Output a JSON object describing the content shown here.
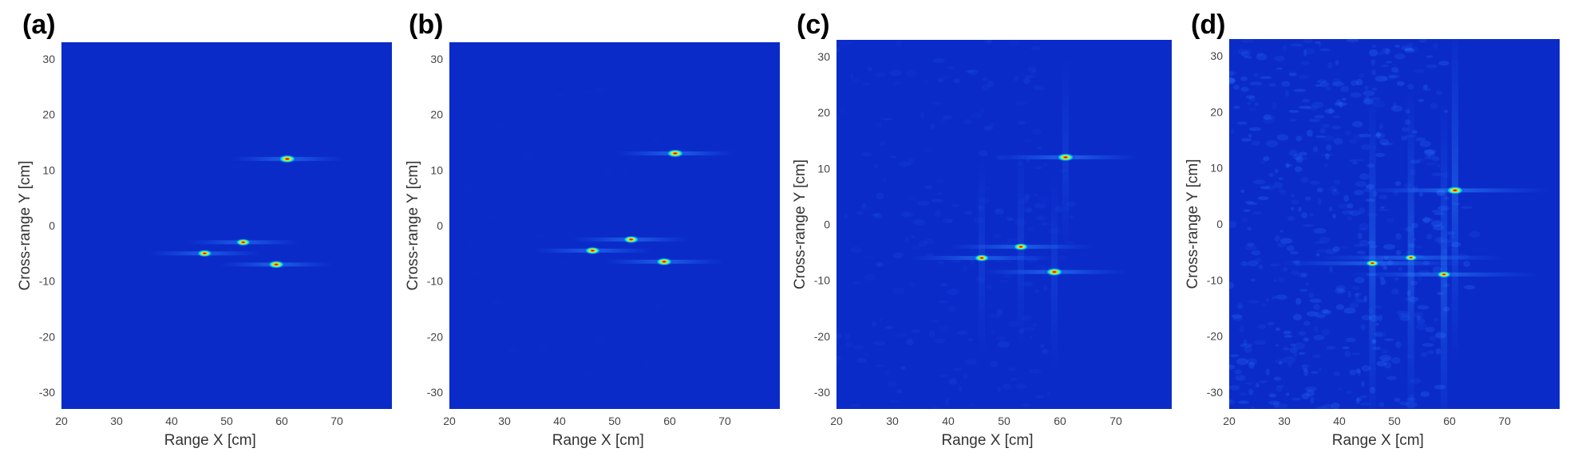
{
  "figure": {
    "colors": {
      "background": "#0a1fa8",
      "low": "#0b2bc9",
      "mid": "#00b7ff",
      "high": "#ffe600",
      "peak": "#ff3b00"
    },
    "panels": [
      {
        "label": "(a)",
        "chart_data": {
          "type": "heatmap",
          "xlabel": "Range X [cm]",
          "ylabel": "Cross-range Y [cm]",
          "xlim": [
            20,
            80
          ],
          "ylim": [
            -33,
            33
          ],
          "xticks": [
            20,
            30,
            40,
            50,
            60,
            70
          ],
          "yticks": [
            30,
            20,
            10,
            0,
            -10,
            -20,
            -30
          ],
          "targets": [
            {
              "x": 61,
              "y": 12,
              "intensity": 1.0
            },
            {
              "x": 53,
              "y": -3,
              "intensity": 0.85
            },
            {
              "x": 46,
              "y": -5,
              "intensity": 0.85
            },
            {
              "x": 59,
              "y": -7,
              "intensity": 0.95
            }
          ],
          "clutter": 0.0
        }
      },
      {
        "label": "(b)",
        "chart_data": {
          "type": "heatmap",
          "xlabel": "Range X [cm]",
          "ylabel": "Cross-range Y [cm]",
          "xlim": [
            20,
            80
          ],
          "ylim": [
            -33,
            33
          ],
          "xticks": [
            20,
            30,
            40,
            50,
            60,
            70
          ],
          "yticks": [
            30,
            20,
            10,
            0,
            -10,
            -20,
            -30
          ],
          "targets": [
            {
              "x": 61,
              "y": 13,
              "intensity": 1.0
            },
            {
              "x": 53,
              "y": -2.5,
              "intensity": 0.9
            },
            {
              "x": 46,
              "y": -4.5,
              "intensity": 0.9
            },
            {
              "x": 59,
              "y": -6.5,
              "intensity": 0.95
            }
          ],
          "clutter": 0.05
        }
      },
      {
        "label": "(c)",
        "chart_data": {
          "type": "heatmap",
          "xlabel": "Range X [cm]",
          "ylabel": "Cross-range Y [cm]",
          "xlim": [
            20,
            80
          ],
          "ylim": [
            -33,
            33
          ],
          "xticks": [
            20,
            30,
            40,
            50,
            60,
            70
          ],
          "yticks": [
            30,
            20,
            10,
            0,
            -10,
            -20,
            -30
          ],
          "targets": [
            {
              "x": 61,
              "y": 12,
              "intensity": 1.0
            },
            {
              "x": 53,
              "y": -4,
              "intensity": 0.85
            },
            {
              "x": 46,
              "y": -6,
              "intensity": 0.85
            },
            {
              "x": 59,
              "y": -8.5,
              "intensity": 1.0
            }
          ],
          "clutter": 0.25
        }
      },
      {
        "label": "(d)",
        "chart_data": {
          "type": "heatmap",
          "xlabel": "Range X [cm]",
          "ylabel": "Cross-range Y [cm]",
          "xlim": [
            20,
            80
          ],
          "ylim": [
            -33,
            33
          ],
          "xticks": [
            20,
            30,
            40,
            50,
            60,
            70
          ],
          "yticks": [
            30,
            20,
            10,
            0,
            -10,
            -20,
            -30
          ],
          "targets": [
            {
              "x": 61,
              "y": 6,
              "intensity": 1.0
            },
            {
              "x": 53,
              "y": -6,
              "intensity": 0.7
            },
            {
              "x": 46,
              "y": -7,
              "intensity": 0.75
            },
            {
              "x": 59,
              "y": -9,
              "intensity": 0.8
            }
          ],
          "clutter": 0.6
        }
      }
    ]
  }
}
